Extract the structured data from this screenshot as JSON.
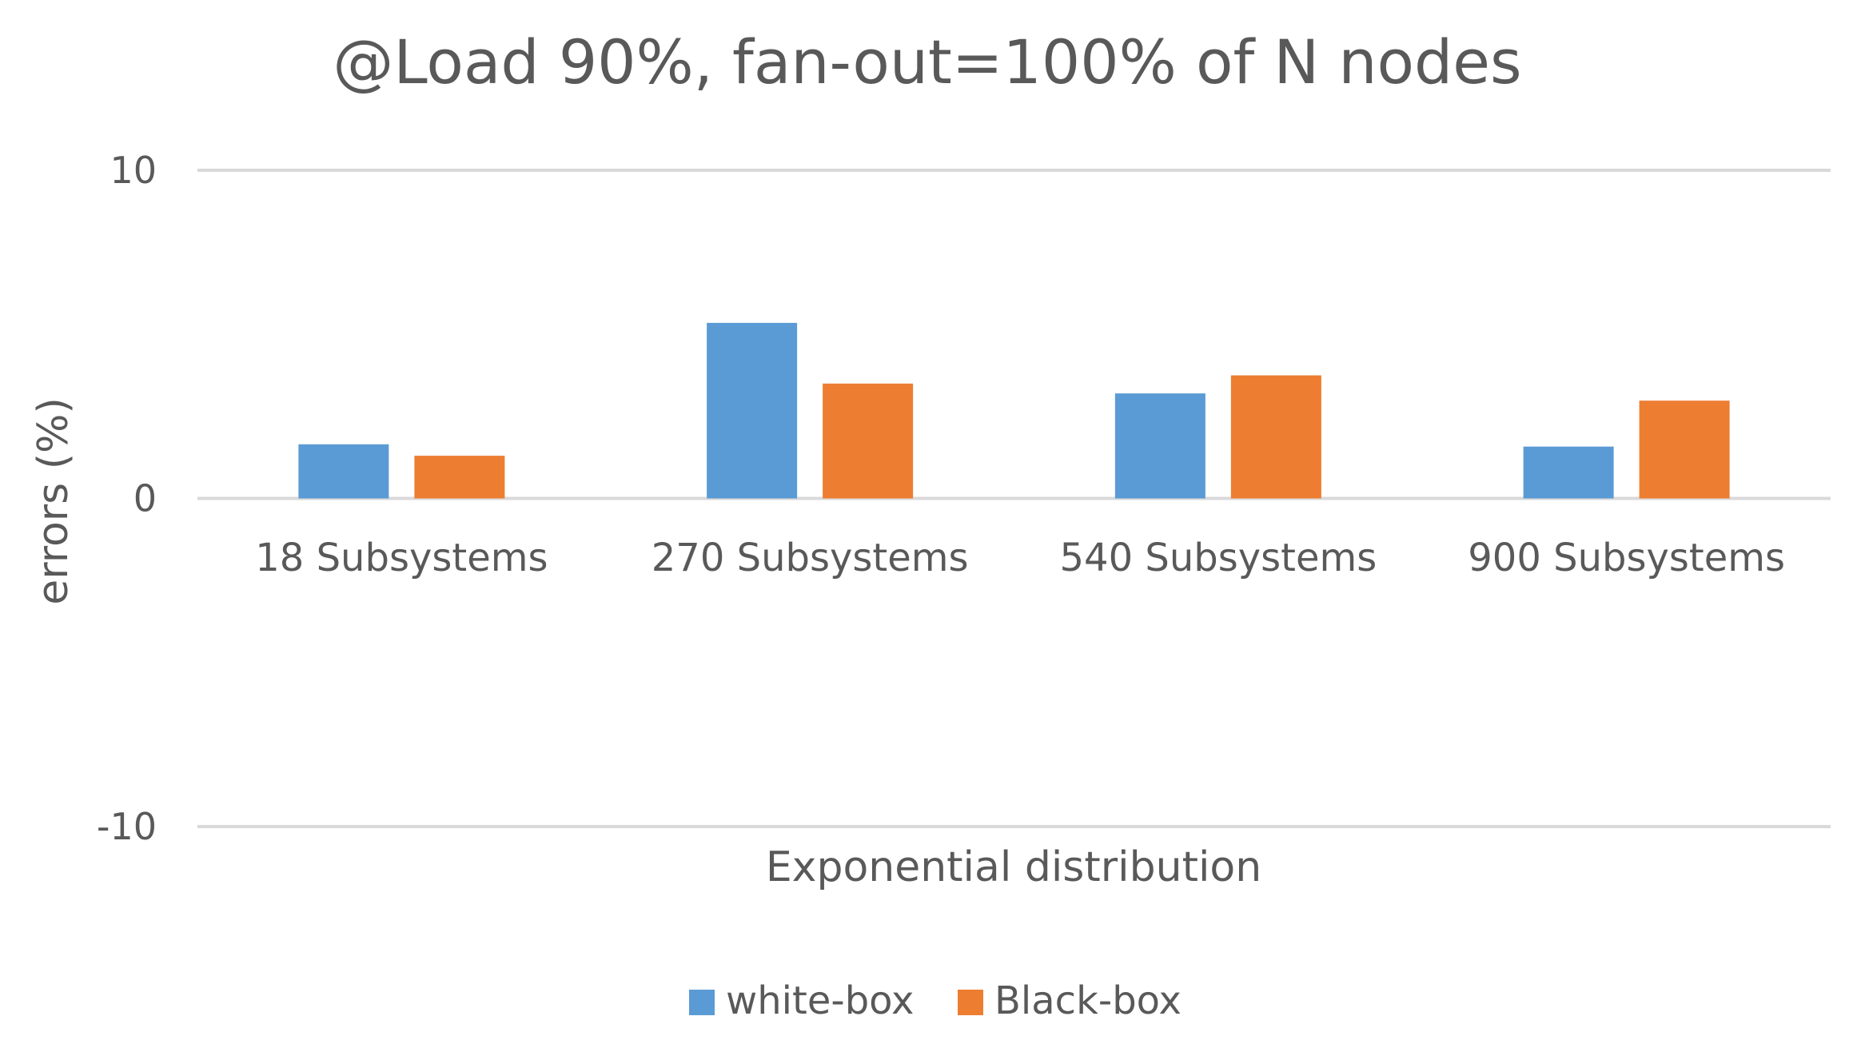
{
  "chart_data": {
    "type": "bar",
    "title": "@Load 90%, fan-out=100% of N nodes",
    "xlabel": "Exponential distribution",
    "ylabel": "errors (%)",
    "ylim": [
      -10,
      10
    ],
    "yticks": [
      10,
      0,
      -10
    ],
    "ytick_labels": [
      "10",
      "0",
      "-10"
    ],
    "categories": [
      "18 Subsystems",
      "270 Subsystems",
      "540 Subsystems",
      "900 Subsystems"
    ],
    "series": [
      {
        "name": "white-box",
        "color": "#5B9BD5",
        "values": [
          1.65,
          5.35,
          3.2,
          1.58
        ]
      },
      {
        "name": "Black-box",
        "color": "#ED7D31",
        "values": [
          1.3,
          3.5,
          3.75,
          2.98
        ]
      }
    ],
    "grid": true,
    "legend_position": "bottom"
  }
}
